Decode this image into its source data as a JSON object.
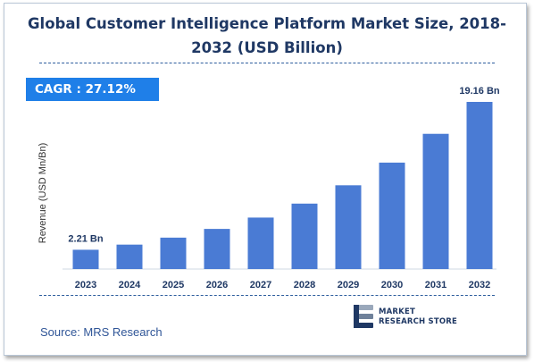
{
  "chart_data": {
    "type": "bar",
    "title": "Global Customer Intelligence Platform Market Size, 2018-2032 (USD Billion)",
    "ylabel": "Revenue (USD Mn/Bn)",
    "xlabel": "",
    "categories": [
      "2023",
      "2024",
      "2025",
      "2026",
      "2027",
      "2028",
      "2029",
      "2030",
      "2031",
      "2032"
    ],
    "values": [
      2.21,
      2.8,
      3.6,
      4.6,
      5.9,
      7.5,
      9.6,
      12.2,
      15.5,
      19.16
    ],
    "data_labels": {
      "2023": "2.21 Bn",
      "2032": "19.16 Bn"
    },
    "ylim": [
      0,
      19.16
    ],
    "bar_color": "#4a7bd4",
    "grid": false
  },
  "cagr": {
    "label": "CAGR : 27.12%",
    "color": "#1f7fe8"
  },
  "source": "Source: MRS Research",
  "brand": {
    "line1": "MARKET",
    "line2": "RESEARCH STORE"
  },
  "colors": {
    "title": "#1f3864",
    "frame": "#b9c6d6"
  }
}
